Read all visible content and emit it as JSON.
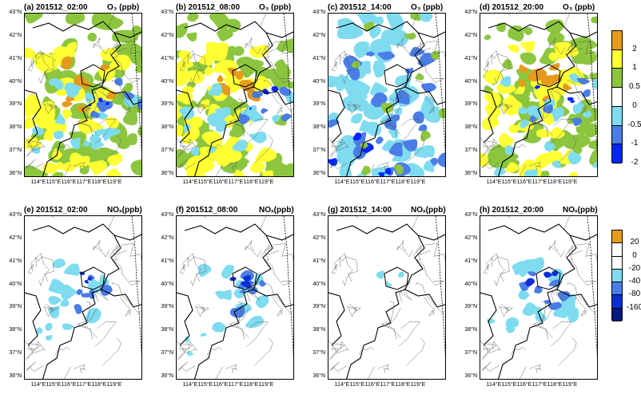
{
  "rows": [
    {
      "variable_label": "O₃ (ppb)",
      "panels": [
        {
          "title": "(a) 201512_02:00",
          "pattern": "o3_night"
        },
        {
          "title": "(b) 201512_08:00",
          "pattern": "o3_morning"
        },
        {
          "title": "(c) 201512_14:00",
          "pattern": "o3_afternoon"
        },
        {
          "title": "(d) 201512_20:00",
          "pattern": "o3_evening"
        }
      ],
      "colorbar": {
        "colors": [
          "#e69a1b",
          "#ffff33",
          "#8cc63f",
          "#ffffff",
          "#7fdcf0",
          "#4a7ee6",
          "#0026ff"
        ],
        "tick_labels": [
          "2",
          "1",
          "0.5",
          "0",
          "-0.5",
          "-1",
          "-2"
        ]
      }
    },
    {
      "variable_label": "NOₓ(ppb)",
      "panels": [
        {
          "title": "(e) 201512_02:00",
          "pattern": "nox_night"
        },
        {
          "title": "(f) 201512_08:00",
          "pattern": "nox_morning"
        },
        {
          "title": "(g) 201512_14:00",
          "pattern": "nox_afternoon"
        },
        {
          "title": "(h) 201512_20:00",
          "pattern": "nox_evening"
        }
      ],
      "colorbar": {
        "colors": [
          "#e69a1b",
          "#ffffff",
          "#ffffff",
          "#7fdcf0",
          "#4a7ee6",
          "#0a2fd6",
          "#001a80"
        ],
        "tick_labels": [
          "20",
          "0",
          "-20",
          "-40",
          "-80",
          "-160"
        ]
      }
    }
  ],
  "lat_labels": [
    "43°N",
    "42°N",
    "41°N",
    "40°N",
    "39°N",
    "38°N",
    "37°N",
    "36°N"
  ],
  "lon_labels": [
    "114°E",
    "115°E",
    "116°E",
    "117°E",
    "118°E",
    "119°E"
  ]
}
